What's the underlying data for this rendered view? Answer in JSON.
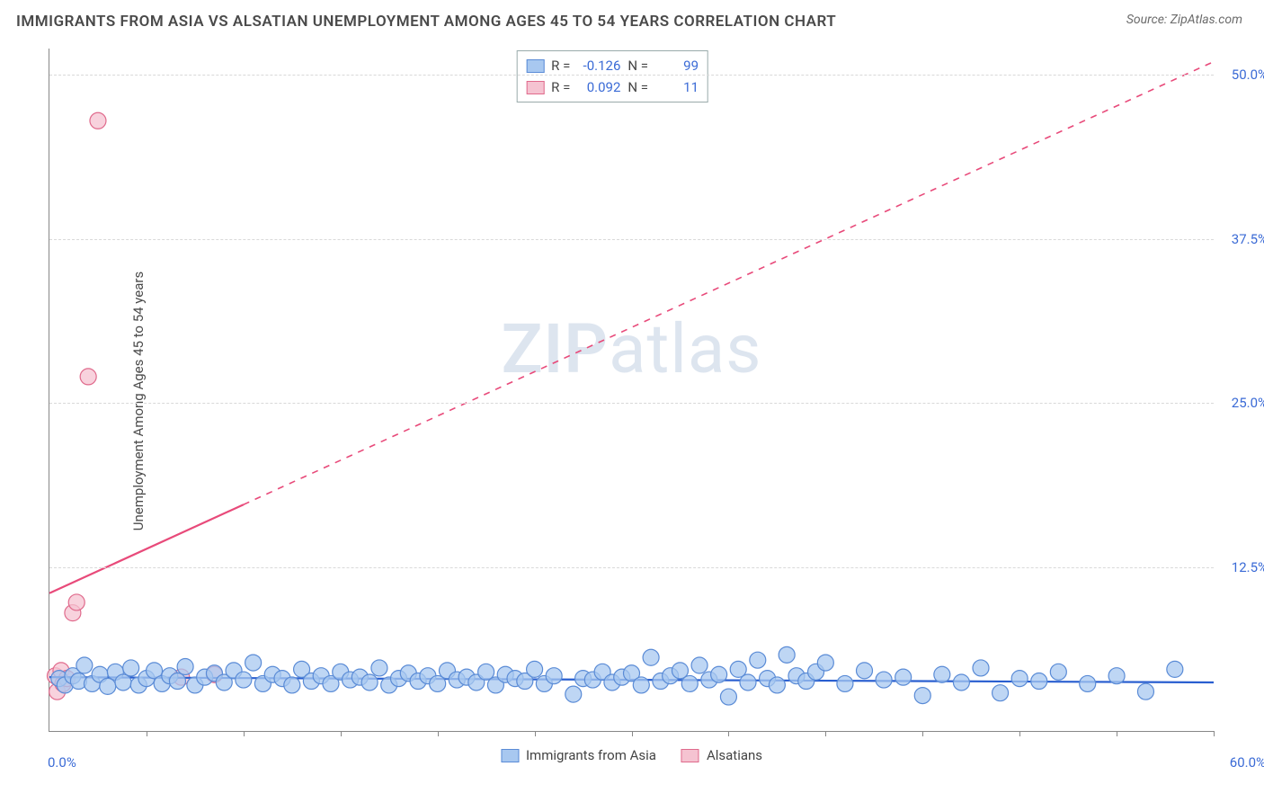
{
  "header": {
    "title": "IMMIGRANTS FROM ASIA VS ALSATIAN UNEMPLOYMENT AMONG AGES 45 TO 54 YEARS CORRELATION CHART",
    "source_prefix": "Source: ",
    "source_name": "ZipAtlas.com"
  },
  "watermark": {
    "zip": "ZIP",
    "atlas": "atlas"
  },
  "chart": {
    "type": "scatter",
    "y_axis_label": "Unemployment Among Ages 45 to 54 years",
    "background_color": "#ffffff",
    "grid_color": "#d9d9d9",
    "axis_color": "#888888",
    "xlim": [
      0,
      60
    ],
    "ylim": [
      0,
      52
    ],
    "x_start_label": "0.0%",
    "x_end_label": "60.0%",
    "x_tick_positions": [
      5,
      10,
      15,
      20,
      25,
      30,
      35,
      40,
      45,
      50,
      55,
      60
    ],
    "y_ticks": [
      {
        "v": 12.5,
        "label": "12.5%"
      },
      {
        "v": 25.0,
        "label": "25.0%"
      },
      {
        "v": 37.5,
        "label": "37.5%"
      },
      {
        "v": 50.0,
        "label": "50.0%"
      }
    ],
    "stats": [
      {
        "series": "blue",
        "R_label": "R =",
        "R": "-0.126",
        "N_label": "N =",
        "N": "99"
      },
      {
        "series": "pink",
        "R_label": "R =",
        "R": "0.092",
        "N_label": "N =",
        "N": "11"
      }
    ],
    "legend": [
      {
        "series": "blue",
        "label": "Immigrants from Asia"
      },
      {
        "series": "pink",
        "label": "Alsatians"
      }
    ],
    "series": {
      "blue": {
        "marker_fill": "#a8c8f0",
        "marker_stroke": "#5a8bd6",
        "marker_opacity": 0.75,
        "marker_r": 9,
        "trend_color": "#2a5fd0",
        "trend_width": 2.2,
        "trend_dash": "",
        "trend": {
          "x1": 0,
          "y1": 4.1,
          "x2": 60,
          "y2": 3.7
        },
        "points": [
          [
            0.5,
            4.0
          ],
          [
            0.8,
            3.5
          ],
          [
            1.2,
            4.2
          ],
          [
            1.5,
            3.8
          ],
          [
            1.8,
            5.0
          ],
          [
            2.2,
            3.6
          ],
          [
            2.6,
            4.3
          ],
          [
            3.0,
            3.4
          ],
          [
            3.4,
            4.5
          ],
          [
            3.8,
            3.7
          ],
          [
            4.2,
            4.8
          ],
          [
            4.6,
            3.5
          ],
          [
            5.0,
            4.0
          ],
          [
            5.4,
            4.6
          ],
          [
            5.8,
            3.6
          ],
          [
            6.2,
            4.2
          ],
          [
            6.6,
            3.8
          ],
          [
            7.0,
            4.9
          ],
          [
            7.5,
            3.5
          ],
          [
            8.0,
            4.1
          ],
          [
            8.5,
            4.4
          ],
          [
            9.0,
            3.7
          ],
          [
            9.5,
            4.6
          ],
          [
            10.0,
            3.9
          ],
          [
            10.5,
            5.2
          ],
          [
            11.0,
            3.6
          ],
          [
            11.5,
            4.3
          ],
          [
            12.0,
            4.0
          ],
          [
            12.5,
            3.5
          ],
          [
            13.0,
            4.7
          ],
          [
            13.5,
            3.8
          ],
          [
            14.0,
            4.2
          ],
          [
            14.5,
            3.6
          ],
          [
            15.0,
            4.5
          ],
          [
            15.5,
            3.9
          ],
          [
            16.0,
            4.1
          ],
          [
            16.5,
            3.7
          ],
          [
            17.0,
            4.8
          ],
          [
            17.5,
            3.5
          ],
          [
            18.0,
            4.0
          ],
          [
            18.5,
            4.4
          ],
          [
            19.0,
            3.8
          ],
          [
            19.5,
            4.2
          ],
          [
            20.0,
            3.6
          ],
          [
            20.5,
            4.6
          ],
          [
            21.0,
            3.9
          ],
          [
            21.5,
            4.1
          ],
          [
            22.0,
            3.7
          ],
          [
            22.5,
            4.5
          ],
          [
            23.0,
            3.5
          ],
          [
            23.5,
            4.3
          ],
          [
            24.0,
            4.0
          ],
          [
            24.5,
            3.8
          ],
          [
            25.0,
            4.7
          ],
          [
            25.5,
            3.6
          ],
          [
            26.0,
            4.2
          ],
          [
            27.0,
            2.8
          ],
          [
            27.5,
            4.0
          ],
          [
            28.0,
            3.9
          ],
          [
            28.5,
            4.5
          ],
          [
            29.0,
            3.7
          ],
          [
            29.5,
            4.1
          ],
          [
            30.0,
            4.4
          ],
          [
            30.5,
            3.5
          ],
          [
            31.0,
            5.6
          ],
          [
            31.5,
            3.8
          ],
          [
            32.0,
            4.2
          ],
          [
            32.5,
            4.6
          ],
          [
            33.0,
            3.6
          ],
          [
            33.5,
            5.0
          ],
          [
            34.0,
            3.9
          ],
          [
            34.5,
            4.3
          ],
          [
            35.0,
            2.6
          ],
          [
            35.5,
            4.7
          ],
          [
            36.0,
            3.7
          ],
          [
            36.5,
            5.4
          ],
          [
            37.0,
            4.0
          ],
          [
            37.5,
            3.5
          ],
          [
            38.0,
            5.8
          ],
          [
            38.5,
            4.2
          ],
          [
            39.0,
            3.8
          ],
          [
            39.5,
            4.5
          ],
          [
            40.0,
            5.2
          ],
          [
            41.0,
            3.6
          ],
          [
            42.0,
            4.6
          ],
          [
            43.0,
            3.9
          ],
          [
            44.0,
            4.1
          ],
          [
            45.0,
            2.7
          ],
          [
            46.0,
            4.3
          ],
          [
            47.0,
            3.7
          ],
          [
            48.0,
            4.8
          ],
          [
            49.0,
            2.9
          ],
          [
            50.0,
            4.0
          ],
          [
            51.0,
            3.8
          ],
          [
            52.0,
            4.5
          ],
          [
            53.5,
            3.6
          ],
          [
            55.0,
            4.2
          ],
          [
            56.5,
            3.0
          ],
          [
            58.0,
            4.7
          ]
        ]
      },
      "pink": {
        "marker_fill": "#f5c3d1",
        "marker_stroke": "#e06a8c",
        "marker_opacity": 0.75,
        "marker_r": 9,
        "trend_color": "#e84a7a",
        "trend_width": 2.2,
        "trend_solid_until_x": 10,
        "trend": {
          "x1": 0,
          "y1": 10.5,
          "x2": 60,
          "y2": 51.0
        },
        "points": [
          [
            0.3,
            4.2
          ],
          [
            0.4,
            3.0
          ],
          [
            0.6,
            4.6
          ],
          [
            0.7,
            3.6
          ],
          [
            0.9,
            4.0
          ],
          [
            1.2,
            9.0
          ],
          [
            1.4,
            9.8
          ],
          [
            2.0,
            27.0
          ],
          [
            2.5,
            46.5
          ],
          [
            6.8,
            4.1
          ],
          [
            8.5,
            4.3
          ]
        ]
      }
    }
  }
}
